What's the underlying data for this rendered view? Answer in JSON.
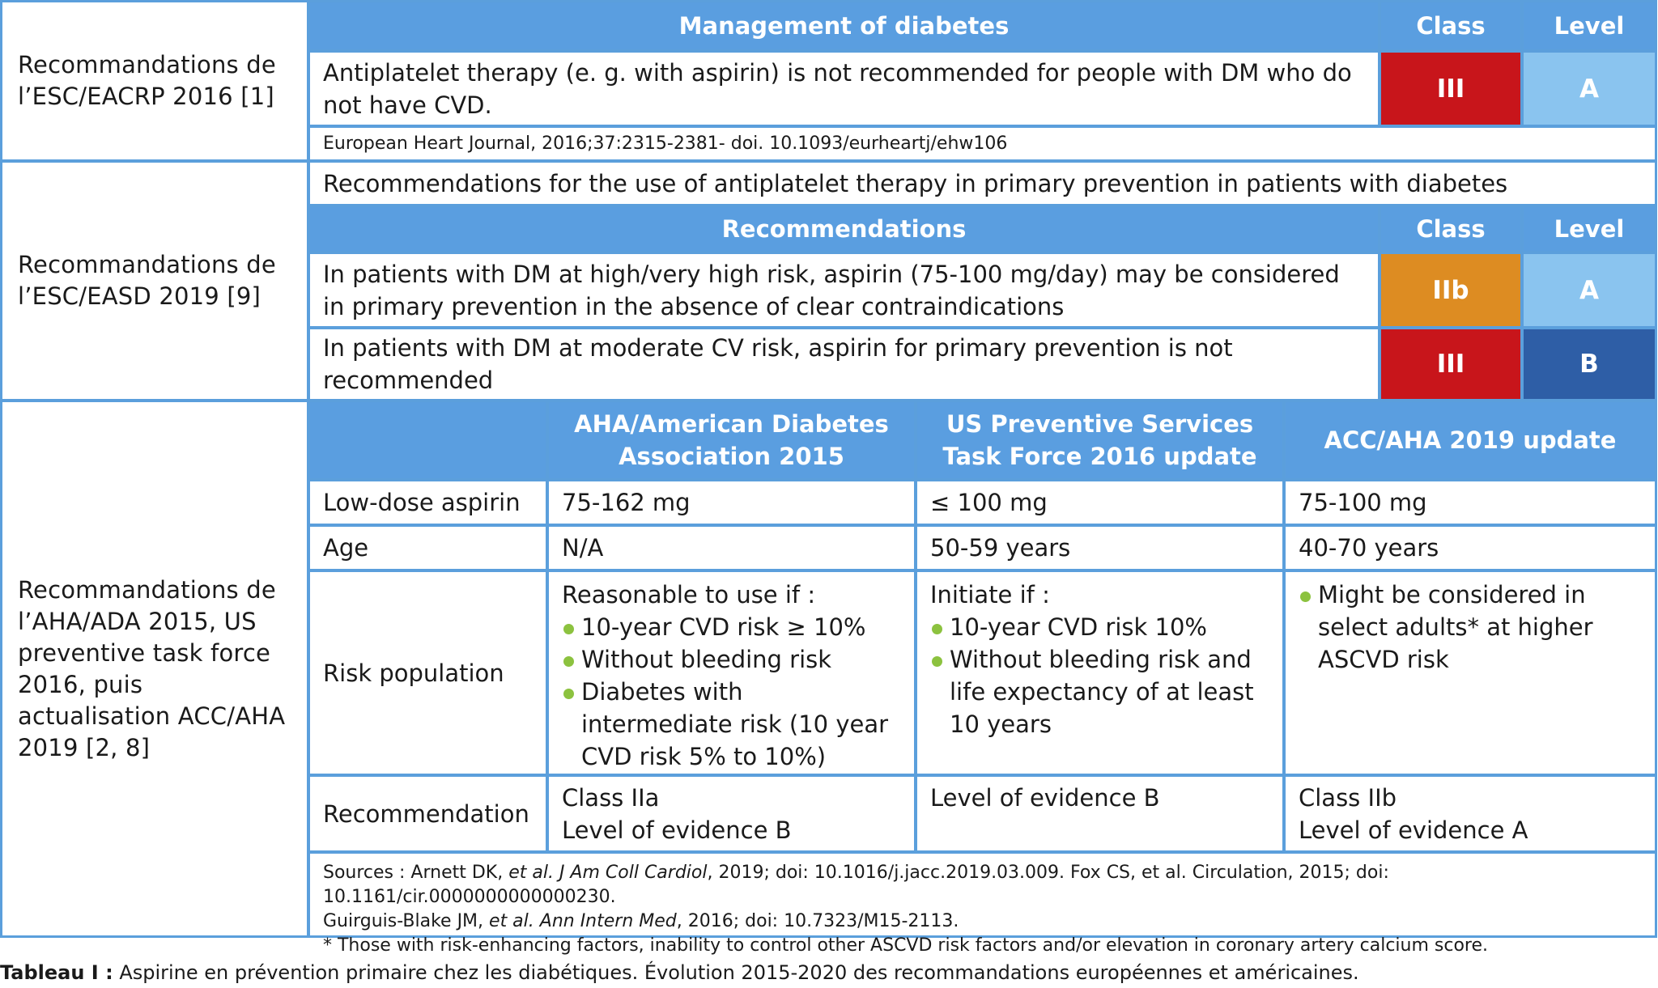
{
  "colors": {
    "border": "#5b9fdc",
    "header_bg": "#5a9ee0",
    "class_III": "#c8151b",
    "class_IIb": "#dd8c22",
    "level_A": "#8ac4ef",
    "level_B": "#2e5ea6",
    "bullet": "#8cc23f"
  },
  "sections": {
    "esc_eacrp": {
      "label": "Recommandations de l’ESC/EACRP 2016 [1]",
      "header": "Management of diabetes",
      "class_header": "Class",
      "level_header": "Level",
      "recommendation": "Antiplatelet therapy (e. g. with aspirin) is not recommended for people with DM who do not have CVD.",
      "class": "III",
      "level": "A",
      "source": "European Heart Journal, 2016;37:2315-2381- doi. 10.1093/eurheartj/ehw106"
    },
    "esc_easd": {
      "label": "Recommandations de l’ESC/EASD 2019 [9]",
      "title": "Recommendations for the use of antiplatelet therapy in primary prevention in patients with diabetes",
      "header": "Recommendations",
      "class_header": "Class",
      "level_header": "Level",
      "rows": [
        {
          "text": "In patients with DM at high/very high risk, aspirin (75-100 mg/day) may be considered in primary prevention in the absence of clear contraindications",
          "class": "IIb",
          "level": "A"
        },
        {
          "text": "In patients with DM at moderate CV risk, aspirin for primary prevention is not recommended",
          "class": "III",
          "level": "B"
        }
      ]
    },
    "aha_ada": {
      "label": "Recommandations de l’AHA/ADA 2015, US preventive task force 2016, puis actualisation ACC/AHA 2019 [2, 8]",
      "columns": [
        "AHA/American Diabetes Association 2015",
        "US Preventive Services Task Force 2016 update",
        "ACC/AHA 2019 update"
      ],
      "dose": {
        "label": "Low-dose aspirin",
        "values": [
          "75-162 mg",
          "≤ 100 mg",
          "75-100 mg"
        ]
      },
      "age": {
        "label": "Age",
        "values": [
          "N/A",
          "50-59 years",
          "40-70 years"
        ]
      },
      "risk": {
        "label": "Risk population",
        "col1_intro": "Reasonable to use if :",
        "col1_items": [
          "10-year CVD risk ≥ 10%",
          "Without bleeding risk",
          "Diabetes with intermediate risk (10 year CVD risk 5% to 10%)"
        ],
        "col2_intro": "Initiate if :",
        "col2_items": [
          "10-year CVD risk 10%",
          "Without bleeding risk and life expectancy of at least 10 years"
        ],
        "col3_items": [
          "Might be considered in select adults* at higher ASCVD risk"
        ]
      },
      "recommendation": {
        "label": "Recommendation",
        "col1": [
          "Class IIa",
          "Level of evidence B"
        ],
        "col2": [
          "Level of evidence B"
        ],
        "col3": [
          "Class IIb",
          "Level of evidence A"
        ]
      },
      "sources": {
        "prefix": "Sources : Arnett DK, ",
        "etal1": "et al. J Am Coll Cardiol",
        "rest1": ", 2019; doi: 10.1016/j.jacc.2019.03.009. Fox CS, et al. Circulation, 2015; doi: 10.1161/cir.0000000000000230.",
        "line2_a": "Guirguis-Blake JM, ",
        "line2_b": "et al. Ann Intern Med",
        "line2_c": ", 2016; doi: 10.7323/M15-2113.",
        "footnote": "* Those with risk-enhancing factors, inability to control other ASCVD risk factors and/or elevation in coronary artery calcium score."
      }
    }
  },
  "caption": {
    "bold": "Tableau I :",
    "text": " Aspirine en prévention primaire chez les diabétiques. Évolution 2015-2020 des recommandations européennes et américaines."
  }
}
